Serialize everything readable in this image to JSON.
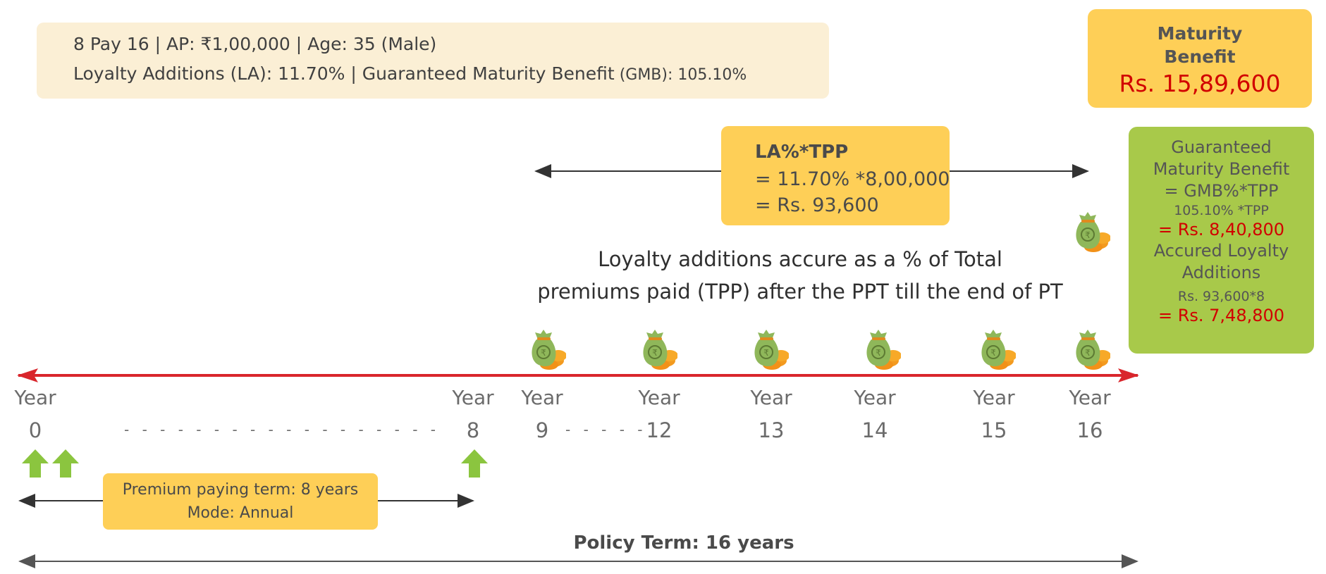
{
  "summary": {
    "line1": "8 Pay 16 | AP: ₹1,00,000 | Age: 35 (Male)",
    "line2_a": "Loyalty Additions (LA): 11.70%  | Guaranteed Maturity Benefit",
    "line2_b": " (GMB): 105.10%"
  },
  "maturity": {
    "title_1": "Maturity",
    "title_2": "Benefit",
    "value": "Rs. 15,89,600"
  },
  "la_box": {
    "title": "LA%*TPP",
    "row1": "= 11.70% *8,00,000",
    "row2": "= Rs. 93,600"
  },
  "green_box": {
    "gmb_1": "Guaranteed",
    "gmb_2": "Maturity Benefit",
    "gmb_3": "= GMB%*TPP",
    "gmb_calc": "105.10% *TPP",
    "gmb_value": "= Rs. 8,40,800",
    "la_1": "Accured Loyalty",
    "la_2": "Additions",
    "la_calc": "Rs. 93,600*8",
    "la_value": "= Rs. 7,48,800"
  },
  "explain": {
    "line1": "Loyalty additions accure as a % of Total",
    "line2": "premiums paid (TPP) after the PPT till the end of PT"
  },
  "timeline": {
    "year_word": "Year",
    "years": [
      "0",
      "8",
      "9",
      "12",
      "13",
      "14",
      "15",
      "16"
    ],
    "dash_left": "- - - - - - - - - - - - - - - - - -",
    "dash_mid": "- - - - -"
  },
  "ppt_box": {
    "line1": "Premium paying term: 8 years",
    "line2": "Mode: Annual"
  },
  "policy_term": "Policy Term: 16 years",
  "colors": {
    "yellow": "#fecf57",
    "cream": "#fbefd5",
    "green": "#a8c94a",
    "red_text": "#d10000",
    "timeline_red": "#d9262c",
    "arrow_green": "#8bc53f"
  },
  "icons": [
    "money-bag-icon",
    "up-arrow-icon"
  ]
}
